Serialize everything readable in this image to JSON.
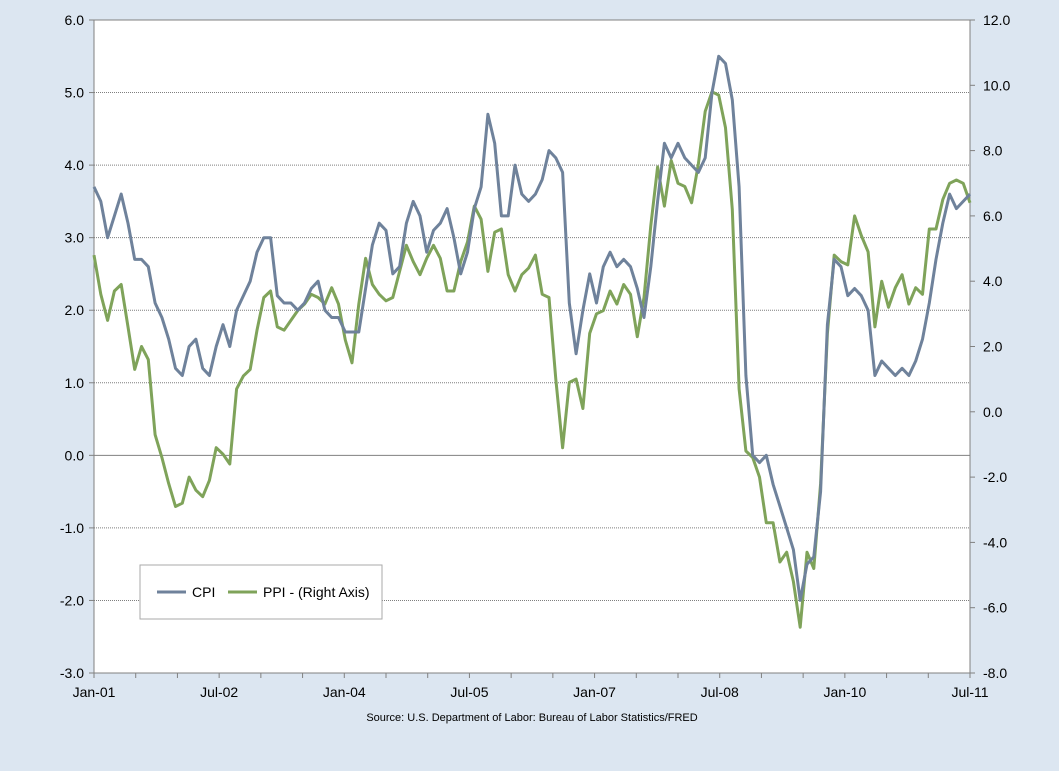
{
  "chart_data": {
    "type": "line",
    "source": "Source: U.S. Department of Labor: Bureau of Labor Statistics/FRED",
    "x_tick_labels": [
      "Jan-01",
      "Jul-02",
      "Jan-04",
      "Jul-05",
      "Jan-07",
      "Jul-08",
      "Jan-10",
      "Jul-11"
    ],
    "x_range": [
      "Jan-01",
      "Jul-11"
    ],
    "grid": "horizontal",
    "legend_position": "bottom-left",
    "y_left": {
      "label": "",
      "range": [
        -3.0,
        6.0
      ],
      "ticks": [
        "6.0",
        "5.0",
        "4.0",
        "3.0",
        "2.0",
        "1.0",
        "0.0",
        "-1.0",
        "-2.0",
        "-3.0"
      ]
    },
    "y_right": {
      "label": "",
      "range": [
        -8.0,
        12.0
      ],
      "ticks": [
        "12.0",
        "10.0",
        "8.0",
        "6.0",
        "4.0",
        "2.0",
        "0.0",
        "-2.0",
        "-4.0",
        "-6.0",
        "-8.0"
      ]
    },
    "series": [
      {
        "name": "CPI",
        "axis": "left",
        "color": "#6f829b",
        "values": [
          3.7,
          3.5,
          3.0,
          3.3,
          3.6,
          3.2,
          2.7,
          2.7,
          2.6,
          2.1,
          1.9,
          1.6,
          1.2,
          1.1,
          1.5,
          1.6,
          1.2,
          1.1,
          1.5,
          1.8,
          1.5,
          2.0,
          2.2,
          2.4,
          2.8,
          3.0,
          3.0,
          2.2,
          2.1,
          2.1,
          2.0,
          2.1,
          2.3,
          2.4,
          2.0,
          1.9,
          1.9,
          1.7,
          1.7,
          1.7,
          2.3,
          2.9,
          3.2,
          3.1,
          2.5,
          2.6,
          3.2,
          3.5,
          3.3,
          2.8,
          3.1,
          3.2,
          3.4,
          3.0,
          2.5,
          2.8,
          3.4,
          3.7,
          4.7,
          4.3,
          3.3,
          3.3,
          4.0,
          3.6,
          3.5,
          3.6,
          3.8,
          4.2,
          4.1,
          3.9,
          2.1,
          1.4,
          2.0,
          2.5,
          2.1,
          2.6,
          2.8,
          2.6,
          2.7,
          2.6,
          2.3,
          1.9,
          2.6,
          3.5,
          4.3,
          4.1,
          4.3,
          4.1,
          4.0,
          3.9,
          4.1,
          5.0,
          5.5,
          5.4,
          4.9,
          3.7,
          1.1,
          0.0,
          -0.1,
          0.0,
          -0.4,
          -0.7,
          -1.0,
          -1.3,
          -2.0,
          -1.5,
          -1.4,
          -0.5,
          1.8,
          2.7,
          2.6,
          2.2,
          2.3,
          2.2,
          2.0,
          1.1,
          1.3,
          1.2,
          1.1,
          1.2,
          1.1,
          1.3,
          1.6,
          2.1,
          2.7,
          3.2,
          3.6,
          3.4,
          3.5,
          3.6
        ]
      },
      {
        "name": "PPI - (Right Axis)",
        "axis": "right",
        "color": "#7fa35a",
        "values": [
          4.8,
          3.6,
          2.8,
          3.7,
          3.9,
          2.6,
          1.3,
          2.0,
          1.6,
          -0.7,
          -1.4,
          -2.2,
          -2.9,
          -2.8,
          -2.0,
          -2.4,
          -2.6,
          -2.1,
          -1.1,
          -1.3,
          -1.6,
          0.7,
          1.1,
          1.3,
          2.5,
          3.5,
          3.7,
          2.6,
          2.5,
          2.8,
          3.1,
          3.3,
          3.6,
          3.5,
          3.3,
          3.8,
          3.3,
          2.2,
          1.5,
          3.3,
          4.7,
          3.9,
          3.6,
          3.4,
          3.5,
          4.3,
          5.1,
          4.6,
          4.2,
          4.7,
          5.1,
          4.7,
          3.7,
          3.7,
          4.6,
          5.2,
          6.3,
          5.9,
          4.3,
          5.5,
          5.6,
          4.2,
          3.7,
          4.2,
          4.4,
          4.8,
          3.6,
          3.5,
          1.0,
          -1.1,
          0.9,
          1.0,
          0.1,
          2.4,
          3.0,
          3.1,
          3.7,
          3.3,
          3.9,
          3.6,
          2.3,
          3.5,
          5.7,
          7.5,
          6.3,
          7.7,
          7.0,
          6.9,
          6.4,
          7.6,
          9.2,
          9.8,
          9.7,
          8.7,
          6.2,
          0.7,
          -1.2,
          -1.4,
          -2.0,
          -3.4,
          -3.4,
          -4.6,
          -4.3,
          -5.2,
          -6.6,
          -4.3,
          -4.8,
          -2.2,
          2.4,
          4.8,
          4.6,
          4.5,
          6.0,
          5.4,
          4.9,
          2.6,
          4.0,
          3.2,
          3.8,
          4.2,
          3.3,
          3.8,
          3.6,
          5.6,
          5.6,
          6.5,
          7.0,
          7.1,
          7.0,
          6.4
        ]
      }
    ]
  }
}
